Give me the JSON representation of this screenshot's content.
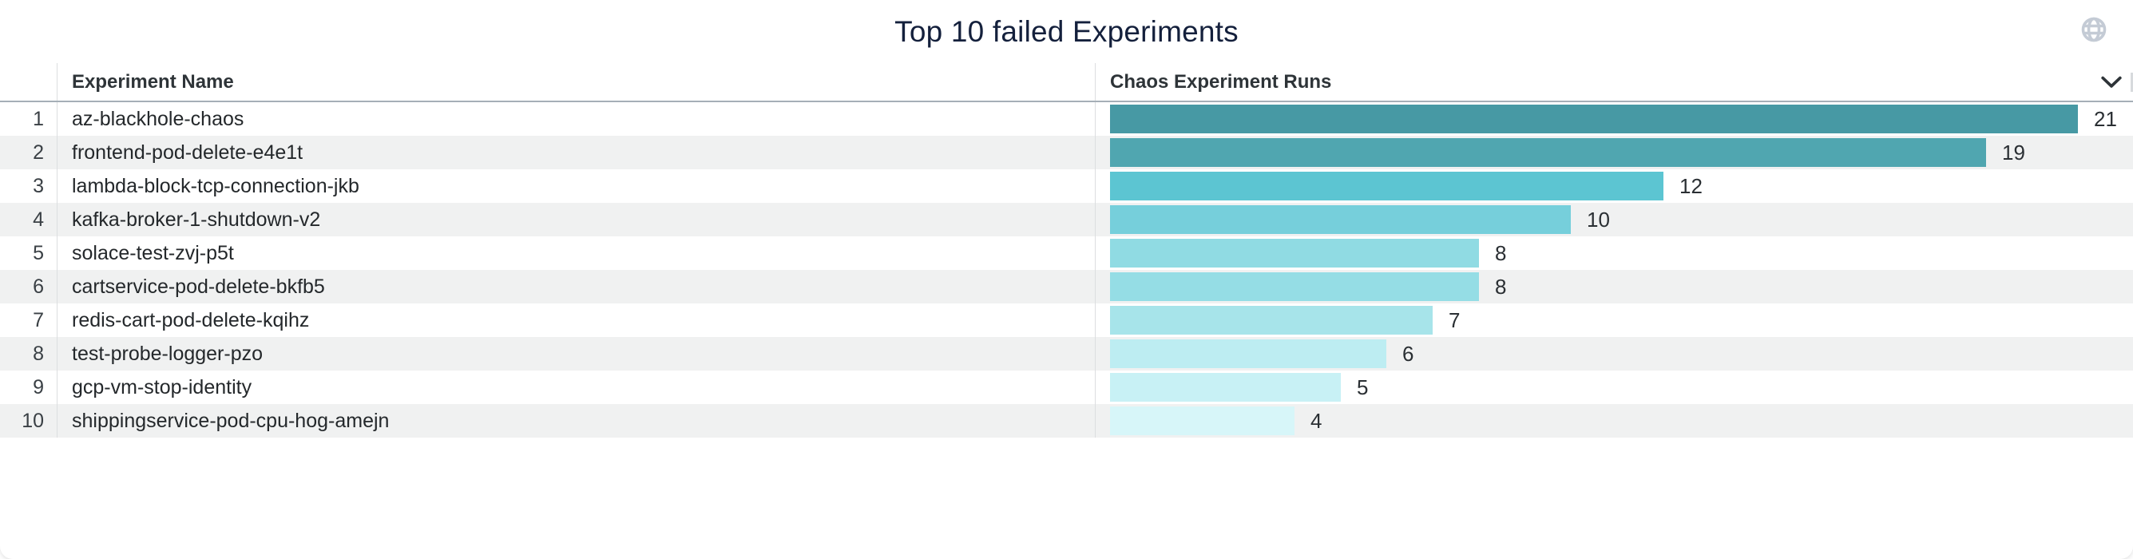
{
  "widget": {
    "title": "Top 10 failed Experiments"
  },
  "header": {
    "experiment_name_label": "Experiment Name",
    "runs_label": "Chaos Experiment Runs"
  },
  "icons": {
    "globe": "globe-icon",
    "chevron": "chevron-down-icon"
  },
  "colors": {
    "title_text": "#14203c",
    "header_text": "#2e3438",
    "row_text": "#24282b",
    "row_alt_bg": "#f0f1f1",
    "header_border": "#a6afb7",
    "column_divider": "#dcdee0",
    "globe_icon": "#c4cbd5",
    "chevron_icon": "#2e3438"
  },
  "chart_data": {
    "type": "bar",
    "orientation": "horizontal",
    "title": "Top 10 failed Experiments",
    "xlabel": "Chaos Experiment Runs",
    "ylabel": "Experiment Name",
    "xlim": [
      0,
      21
    ],
    "grid": false,
    "legend": "none",
    "value_labels": true,
    "ranks": [
      1,
      2,
      3,
      4,
      5,
      6,
      7,
      8,
      9,
      10
    ],
    "categories": [
      "az-blackhole-chaos",
      "frontend-pod-delete-e4e1t",
      "lambda-block-tcp-connection-jkb",
      "kafka-broker-1-shutdown-v2",
      "solace-test-zvj-p5t",
      "cartservice-pod-delete-bkfb5",
      "redis-cart-pod-delete-kqihz",
      "test-probe-logger-pzo",
      "gcp-vm-stop-identity",
      "shippingservice-pod-cpu-hog-amejn"
    ],
    "values": [
      21,
      19,
      12,
      10,
      8,
      8,
      7,
      6,
      5,
      4
    ],
    "bar_colors": [
      "#4799a4",
      "#50a6b0",
      "#5cc5d2",
      "#76cfdb",
      "#90dbe3",
      "#95dde5",
      "#a7e4ea",
      "#bdedf2",
      "#c8f1f5",
      "#d7f6f9"
    ]
  }
}
